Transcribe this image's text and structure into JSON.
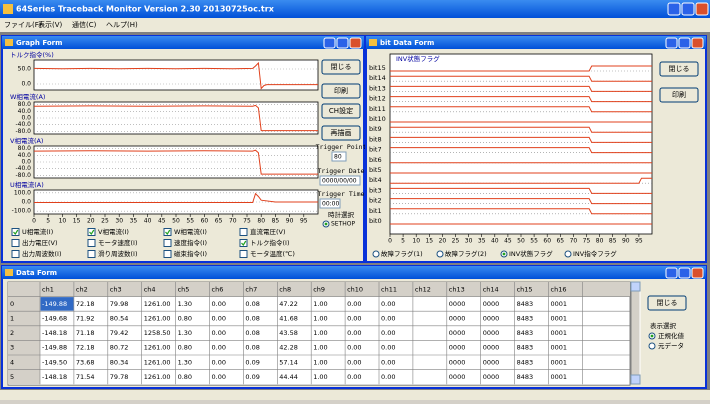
{
  "window": {
    "title": "64Series Traceback Monitor Version 2.30   20130725oc.trx",
    "menu": [
      "ファイル(F)",
      "表示(V)",
      "通信(C)",
      "ヘルプ(H)"
    ]
  },
  "graph_form": {
    "title": "Graph Form",
    "buttons": [
      "閉じる",
      "印刷",
      "CH設定",
      "再描画"
    ],
    "trigger_point_label": "Trigger Point",
    "trigger_point": "80",
    "trigger_date_label": "Trigger Date",
    "trigger_date": "0000/00/00",
    "trigger_time_label": "Trigger Time",
    "trigger_time": "00:00",
    "clock_label": "時計選択",
    "clock_option": "SETHOP",
    "xlim": [
      0,
      100
    ],
    "xticks": [
      0,
      5,
      10,
      15,
      20,
      25,
      30,
      35,
      40,
      45,
      50,
      55,
      60,
      65,
      70,
      75,
      80,
      85,
      90,
      95
    ],
    "panels": [
      {
        "label": "トルク指令(%)",
        "ylim": [
          -20,
          80
        ],
        "yticks": [
          {
            "value": 50,
            "label": "50.0"
          },
          {
            "value": 0,
            "label": "0.0"
          }
        ],
        "color": "#e0401c",
        "x": [
          0,
          10,
          20,
          30,
          40,
          50,
          60,
          70,
          77,
          78,
          79,
          80,
          81,
          82,
          90,
          100
        ],
        "values": [
          52,
          51,
          52,
          51,
          52,
          51,
          52,
          51,
          52,
          60,
          70,
          -15,
          -5,
          -2,
          -2,
          -2
        ]
      },
      {
        "label": "W相電流(A)",
        "ylim": [
          -95,
          95
        ],
        "yticks": [
          {
            "value": 80,
            "label": "80.0"
          },
          {
            "value": 40,
            "label": "40.0"
          },
          {
            "value": 0,
            "label": "0.0"
          },
          {
            "value": -40,
            "label": "-40.0"
          },
          {
            "value": -80,
            "label": "-80.0"
          }
        ],
        "color": "#e0401c",
        "x": [
          0,
          20,
          40,
          60,
          77,
          78,
          79,
          80,
          82,
          100
        ],
        "values": [
          70,
          72,
          70,
          72,
          70,
          75,
          60,
          -75,
          -75,
          -75
        ]
      },
      {
        "label": "V相電流(A)",
        "ylim": [
          -95,
          95
        ],
        "yticks": [
          {
            "value": 80,
            "label": "80.0"
          },
          {
            "value": 40,
            "label": "40.0"
          },
          {
            "value": 0,
            "label": "0.0"
          },
          {
            "value": -40,
            "label": "-40.0"
          },
          {
            "value": -80,
            "label": "-80.0"
          }
        ],
        "color": "#e0401c",
        "x": [
          0,
          20,
          40,
          60,
          77,
          78,
          79,
          80,
          82,
          100
        ],
        "values": [
          65,
          67,
          65,
          67,
          65,
          70,
          55,
          -72,
          -72,
          -72
        ]
      },
      {
        "label": "U相電流(A)",
        "ylim": [
          -130,
          130
        ],
        "yticks": [
          {
            "value": 100,
            "label": "100.0"
          },
          {
            "value": 0,
            "label": "0.0"
          },
          {
            "value": -100,
            "label": "-100.0"
          }
        ],
        "color": "#e0401c",
        "x": [
          0,
          20,
          40,
          60,
          77,
          78,
          79,
          80,
          85,
          100
        ],
        "values": [
          -5,
          -5,
          -5,
          -5,
          -5,
          90,
          60,
          20,
          0,
          0
        ]
      }
    ],
    "checkboxes": [
      {
        "label": "U相電流(I)",
        "checked": true
      },
      {
        "label": "V相電流(I)",
        "checked": true
      },
      {
        "label": "W相電流(I)",
        "checked": true
      },
      {
        "label": "直流電圧(V)",
        "checked": false
      },
      {
        "label": "出力電圧(V)",
        "checked": false
      },
      {
        "label": "モータ速度(I)",
        "checked": false
      },
      {
        "label": "速度指令(I)",
        "checked": false
      },
      {
        "label": "トルク指令(I)",
        "checked": true
      },
      {
        "label": "出力周波数(I)",
        "checked": false
      },
      {
        "label": "滑り周波数(I)",
        "checked": false
      },
      {
        "label": "磁束指令(I)",
        "checked": false
      },
      {
        "label": "モータ温度(℃)",
        "checked": false
      }
    ]
  },
  "bit_form": {
    "title": "bit Data Form",
    "chart_label": "INV状態フラグ",
    "buttons": [
      "閉じる",
      "印刷"
    ],
    "xlim": [
      0,
      100
    ],
    "xticks": [
      0,
      5,
      10,
      15,
      20,
      25,
      30,
      35,
      40,
      45,
      50,
      55,
      60,
      65,
      70,
      75,
      80,
      85,
      90,
      95
    ],
    "color": "#e0401c",
    "x": [
      0,
      76,
      77,
      95,
      96,
      100
    ],
    "bits": [
      {
        "name": "bit15",
        "values": [
          0,
          0,
          1,
          1,
          1,
          1
        ]
      },
      {
        "name": "bit14",
        "values": [
          1,
          1,
          0,
          0,
          0,
          0
        ]
      },
      {
        "name": "bit13",
        "values": [
          1,
          1,
          0,
          0,
          0,
          0
        ]
      },
      {
        "name": "bit12",
        "values": [
          1,
          1,
          0,
          0,
          0,
          0
        ]
      },
      {
        "name": "bit11",
        "values": [
          1,
          1,
          0,
          0,
          0,
          0
        ]
      },
      {
        "name": "bit10",
        "values": [
          0,
          0,
          0,
          0,
          0,
          0
        ]
      },
      {
        "name": "bit9",
        "values": [
          1,
          1,
          0,
          0,
          0,
          0
        ]
      },
      {
        "name": "bit8",
        "values": [
          1,
          1,
          0,
          0,
          0,
          0
        ]
      },
      {
        "name": "bit7",
        "values": [
          1,
          1,
          0,
          0,
          0,
          0
        ]
      },
      {
        "name": "bit6",
        "values": [
          0,
          0,
          0,
          0,
          0,
          0
        ]
      },
      {
        "name": "bit5",
        "values": [
          0,
          0,
          0,
          0,
          0,
          0
        ]
      },
      {
        "name": "bit4",
        "values": [
          0,
          0,
          0,
          0,
          1,
          1
        ]
      },
      {
        "name": "bit3",
        "values": [
          1,
          1,
          0,
          0,
          0,
          0
        ]
      },
      {
        "name": "bit2",
        "values": [
          1,
          1,
          0,
          0,
          0,
          0
        ]
      },
      {
        "name": "bit1",
        "values": [
          1,
          1,
          0,
          0,
          0,
          0
        ]
      },
      {
        "name": "bit0",
        "values": [
          0,
          0,
          0,
          0,
          0,
          0
        ]
      }
    ],
    "radios": [
      "故障フラグ(1)",
      "故障フラグ(2)",
      "INV状態フラグ",
      "INV指令フラグ"
    ],
    "selected": 2
  },
  "data_form": {
    "title": "Data Form",
    "button": "閉じる",
    "display_label": "表示選択",
    "radios": [
      "正規化値",
      "元データ"
    ],
    "selected": 0,
    "columns": [
      "ch1",
      "ch2",
      "ch3",
      "ch4",
      "ch5",
      "ch6",
      "ch7",
      "ch8",
      "ch9",
      "ch10",
      "ch11",
      "ch12",
      "ch13",
      "ch14",
      "ch15",
      "ch16"
    ],
    "rows": [
      [
        "0",
        "-149.88",
        "72.18",
        "79.98",
        "1261.00",
        "1.30",
        "0.00",
        "0.08",
        "47.22",
        "1.00",
        "0.00",
        "0.00",
        null,
        "0000",
        "0000",
        "8483",
        "0001"
      ],
      [
        "1",
        "-149.68",
        "71.92",
        "80.54",
        "1261.00",
        "0.80",
        "0.00",
        "0.08",
        "41.68",
        "1.00",
        "0.00",
        "0.00",
        null,
        "0000",
        "0000",
        "8483",
        "0001"
      ],
      [
        "2",
        "-148.18",
        "71.18",
        "79.42",
        "1258.50",
        "1.30",
        "0.00",
        "0.08",
        "43.58",
        "1.00",
        "0.00",
        "0.00",
        null,
        "0000",
        "0000",
        "8483",
        "0001"
      ],
      [
        "3",
        "-149.88",
        "72.18",
        "80.72",
        "1261.00",
        "0.80",
        "0.00",
        "0.08",
        "42.28",
        "1.00",
        "0.00",
        "0.00",
        null,
        "0000",
        "0000",
        "8483",
        "0001"
      ],
      [
        "4",
        "-149.50",
        "73.68",
        "80.34",
        "1261.00",
        "1.30",
        "0.00",
        "0.09",
        "57.14",
        "1.00",
        "0.00",
        "0.00",
        null,
        "0000",
        "0000",
        "8483",
        "0001"
      ],
      [
        "5",
        "-148.18",
        "71.54",
        "79.78",
        "1261.00",
        "0.80",
        "0.00",
        "0.09",
        "44.44",
        "1.00",
        "0.00",
        "0.00",
        null,
        "0000",
        "0000",
        "8483",
        "0001"
      ]
    ]
  }
}
